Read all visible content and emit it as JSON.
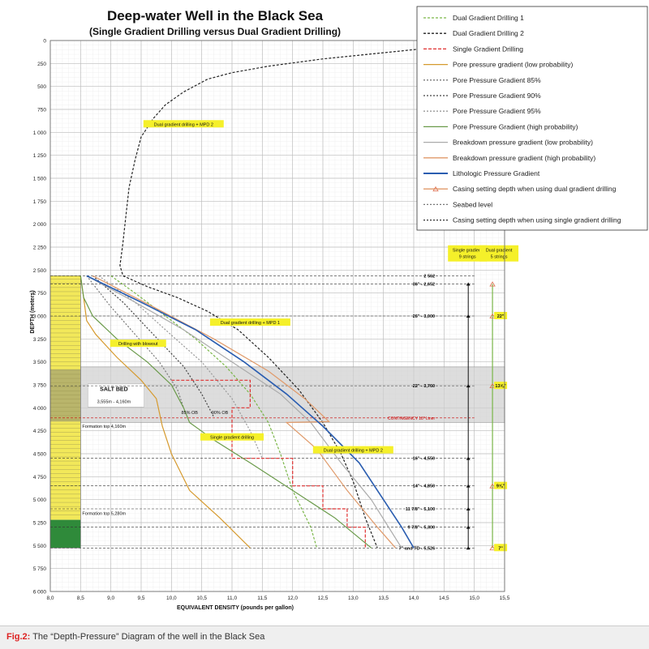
{
  "chart_data": {
    "type": "line",
    "title": "Deep-water Well in the Black Sea",
    "subtitle": "(Single Gradient Drilling versus Dual Gradient Drilling)",
    "xlabel": "EQUIVALENT DENSITY (pounds per gallon)",
    "ylabel": "DEPTH (meters)",
    "xlim": [
      8.0,
      15.5
    ],
    "ylim": [
      0,
      6000
    ],
    "y_inverted": true,
    "grid": true,
    "legend_position": "top-right",
    "x_ticks": [
      "8,0",
      "8,5",
      "9,0",
      "9,5",
      "10,0",
      "10,5",
      "11,0",
      "11,5",
      "12,0",
      "12,5",
      "13,0",
      "13,5",
      "14,0",
      "14,5",
      "15,0",
      "15,5"
    ],
    "x_tick_values": [
      8.0,
      8.5,
      9.0,
      9.5,
      10.0,
      10.5,
      11.0,
      11.5,
      12.0,
      12.5,
      13.0,
      13.5,
      14.0,
      14.5,
      15.0,
      15.5
    ],
    "y_ticks": [
      "0",
      "250",
      "500",
      "750",
      "1 000",
      "1 250",
      "1 500",
      "1 750",
      "2 000",
      "2 250",
      "2 500",
      "2 750",
      "3 000",
      "3 250",
      "3 500",
      "3 750",
      "4 000",
      "4 250",
      "4 500",
      "4 750",
      "5 000",
      "5 250",
      "5 500",
      "5 750",
      "6 000"
    ],
    "y_tick_values": [
      0,
      250,
      500,
      750,
      1000,
      1250,
      1500,
      1750,
      2000,
      2250,
      2500,
      2750,
      3000,
      3250,
      3500,
      3750,
      4000,
      4250,
      4500,
      4750,
      5000,
      5250,
      5500,
      5750,
      6000
    ],
    "series": [
      {
        "name": "Dual Gradient Drilling 1",
        "color": "#7ab648",
        "dash": "3,2",
        "points": [
          [
            9.0,
            2562
          ],
          [
            9.4,
            2750
          ],
          [
            9.9,
            3000
          ],
          [
            10.4,
            3250
          ],
          [
            10.9,
            3550
          ],
          [
            11.3,
            3850
          ],
          [
            11.6,
            4160
          ],
          [
            11.8,
            4500
          ],
          [
            12.0,
            4900
          ],
          [
            12.3,
            5300
          ],
          [
            12.4,
            5526
          ]
        ]
      },
      {
        "name": "Dual Gradient Drilling 2",
        "color": "#222222",
        "dash": "3,2",
        "points": [
          [
            15.3,
            0
          ],
          [
            14.0,
            100
          ],
          [
            12.5,
            200
          ],
          [
            11.6,
            280
          ],
          [
            11.0,
            350
          ],
          [
            10.6,
            420
          ],
          [
            10.2,
            560
          ],
          [
            9.9,
            700
          ],
          [
            9.7,
            850
          ],
          [
            9.5,
            1050
          ],
          [
            9.4,
            1300
          ],
          [
            9.3,
            1600
          ],
          [
            9.25,
            1900
          ],
          [
            9.2,
            2200
          ],
          [
            9.15,
            2450
          ],
          [
            9.2,
            2562
          ],
          [
            9.6,
            2680
          ],
          [
            10.1,
            2800
          ],
          [
            10.6,
            2950
          ],
          [
            11.1,
            3150
          ],
          [
            11.6,
            3450
          ],
          [
            12.1,
            3800
          ],
          [
            12.5,
            4160
          ],
          [
            12.8,
            4500
          ],
          [
            13.0,
            4800
          ],
          [
            13.2,
            5200
          ],
          [
            13.4,
            5526
          ]
        ]
      },
      {
        "name": "Single Gradient Drilling",
        "color": "#e03030",
        "dash": "4,2",
        "points": [
          [
            10.0,
            3700
          ],
          [
            11.3,
            3700
          ],
          [
            11.3,
            4000
          ],
          [
            11.0,
            4000
          ],
          [
            11.0,
            4550
          ],
          [
            12.0,
            4550
          ],
          [
            12.0,
            4850
          ],
          [
            12.5,
            4850
          ],
          [
            12.5,
            5100
          ],
          [
            12.9,
            5100
          ],
          [
            12.9,
            5300
          ],
          [
            13.2,
            5300
          ],
          [
            13.2,
            5526
          ]
        ]
      },
      {
        "name": "Pore pressure gradient (low probability)",
        "color": "#d69a2e",
        "dash": "",
        "points": [
          [
            8.5,
            2562
          ],
          [
            8.55,
            2800
          ],
          [
            8.6,
            3050
          ],
          [
            8.75,
            3200
          ],
          [
            9.1,
            3450
          ],
          [
            9.5,
            3700
          ],
          [
            9.75,
            3900
          ],
          [
            9.85,
            4200
          ],
          [
            10.0,
            4500
          ],
          [
            10.3,
            4900
          ],
          [
            10.8,
            5200
          ],
          [
            11.3,
            5526
          ]
        ]
      },
      {
        "name": "Pore Pressure Gradient 85%",
        "color": "#7a7a7a",
        "dash": "2,2",
        "points": [
          [
            8.6,
            2562
          ],
          [
            9.0,
            2900
          ],
          [
            9.4,
            3200
          ],
          [
            9.8,
            3500
          ],
          [
            10.1,
            3800
          ],
          [
            10.2,
            4000
          ]
        ]
      },
      {
        "name": "Pore Pressure Gradient 90%",
        "color": "#444444",
        "dash": "2,2",
        "points": [
          [
            8.7,
            2562
          ],
          [
            9.2,
            2850
          ],
          [
            9.7,
            3200
          ],
          [
            10.2,
            3550
          ],
          [
            10.5,
            3850
          ],
          [
            10.7,
            4100
          ]
        ]
      },
      {
        "name": "Pore Pressure Gradient 95%",
        "color": "#999999",
        "dash": "2,2",
        "points": [
          [
            8.8,
            2562
          ],
          [
            9.4,
            2850
          ],
          [
            9.9,
            3150
          ],
          [
            10.5,
            3500
          ],
          [
            11.0,
            3900
          ],
          [
            11.3,
            4250
          ],
          [
            11.5,
            4550
          ]
        ]
      },
      {
        "name": "Pore Pressure Gradient (high probability)",
        "color": "#6a9a4a",
        "dash": "",
        "points": [
          [
            8.5,
            2562
          ],
          [
            8.55,
            2800
          ],
          [
            8.7,
            3000
          ],
          [
            9.1,
            3250
          ],
          [
            9.6,
            3500
          ],
          [
            10.0,
            3750
          ],
          [
            10.2,
            4000
          ],
          [
            10.3,
            4160
          ],
          [
            10.7,
            4350
          ],
          [
            11.3,
            4600
          ],
          [
            12.0,
            4900
          ],
          [
            12.7,
            5200
          ],
          [
            13.3,
            5526
          ]
        ]
      },
      {
        "name": "Breakdown pressure gradient (low probability)",
        "color": "#aaaaaa",
        "dash": "",
        "points": [
          [
            8.6,
            2562
          ],
          [
            9.4,
            2850
          ],
          [
            10.2,
            3150
          ],
          [
            11.0,
            3500
          ],
          [
            11.8,
            3850
          ],
          [
            12.3,
            4160
          ],
          [
            12.8,
            4600
          ],
          [
            13.3,
            5000
          ],
          [
            13.8,
            5526
          ]
        ]
      },
      {
        "name": "Breakdown pressure gradient (high probability)",
        "color": "#e09a6a",
        "dash": "",
        "points": [
          [
            8.7,
            2562
          ],
          [
            9.7,
            2900
          ],
          [
            10.7,
            3250
          ],
          [
            11.6,
            3600
          ],
          [
            12.2,
            3900
          ],
          [
            12.6,
            4150
          ],
          [
            11.9,
            4160
          ],
          [
            12.4,
            4450
          ],
          [
            12.9,
            4900
          ],
          [
            13.4,
            5300
          ],
          [
            13.7,
            5526
          ]
        ]
      },
      {
        "name": "Lithologic Pressure Gradient",
        "color": "#2a5db0",
        "dash": "",
        "points": [
          [
            8.6,
            2562
          ],
          [
            9.5,
            2850
          ],
          [
            10.4,
            3150
          ],
          [
            11.2,
            3500
          ],
          [
            11.9,
            3850
          ],
          [
            12.5,
            4200
          ],
          [
            13.1,
            4600
          ],
          [
            13.5,
            5000
          ],
          [
            13.8,
            5300
          ],
          [
            14.0,
            5526
          ]
        ]
      },
      {
        "name": "Casing setting depth when using dual gradient drilling",
        "color": "#e09a6a",
        "dash": "",
        "marker": "triangle",
        "points": [
          [
            15.3,
            2652
          ],
          [
            15.3,
            5526
          ]
        ]
      },
      {
        "name": "Seabed level",
        "color": "#777777",
        "dash": "2,2",
        "points": [
          [
            8.0,
            2562
          ],
          [
            15.5,
            2562
          ]
        ]
      },
      {
        "name": "Casing setting depth when using single gradient drilling",
        "color": "#333333",
        "dash": "2,2",
        "points": [
          [
            8.0,
            2652
          ],
          [
            15.5,
            2652
          ]
        ]
      }
    ],
    "casing_lines": [
      {
        "label": "2 562",
        "depth": 2562
      },
      {
        "label": "36\" - 2,652",
        "depth": 2652
      },
      {
        "label": "26\" - 3,000",
        "depth": 3000
      },
      {
        "label": "22\" - 3,760",
        "depth": 3760
      },
      {
        "label": "CONTINGENCY 18\" Liner",
        "depth": 4110
      },
      {
        "label": "16\" - 4,550",
        "depth": 4550
      },
      {
        "label": "14\" - 4,850",
        "depth": 4850
      },
      {
        "label": "11 7/8\" - 5,100",
        "depth": 5100
      },
      {
        "label": "9 7/8\" - 5,300",
        "depth": 5300
      },
      {
        "label": "7\" and TD - 5,526",
        "depth": 5526
      }
    ],
    "dual_casing_labels": [
      {
        "label": "22\"",
        "depth": 3000
      },
      {
        "label": "13⅝\"",
        "depth": 3760
      },
      {
        "label": "9⅝\"",
        "depth": 4850
      },
      {
        "label": "7\"",
        "depth": 5526
      }
    ],
    "salt_bed": {
      "label": "SALT BED",
      "range_text": "3,555m - 4,160m",
      "top": 3555,
      "bottom": 4160
    },
    "annotations": [
      {
        "text": "Dual gradient drilling  + MPD 2",
        "x": 10.2,
        "y": 920
      },
      {
        "text": "Dual gradient drilling  + MPD 1",
        "x": 11.3,
        "y": 3080
      },
      {
        "text": "Drilling with blowout",
        "x": 9.45,
        "y": 3310
      },
      {
        "text": "Single gradient drilling",
        "x": 11.0,
        "y": 4330
      },
      {
        "text": "Dual gradient drilling  + MPD 2",
        "x": 13.0,
        "y": 4470
      },
      {
        "text": "85% OB",
        "x": 10.3,
        "y": 4060
      },
      {
        "text": "90% OB",
        "x": 10.8,
        "y": 4060
      }
    ],
    "formation_labels": [
      {
        "text": "Formation top 4,160m",
        "depth": 4200
      },
      {
        "text": "Formation top 5,280m",
        "depth": 5150
      }
    ],
    "column_headers": {
      "single": [
        "Single gradient",
        "9 strings"
      ],
      "dual": [
        "Dual gradient",
        "5 strings"
      ]
    }
  },
  "caption": {
    "prefix": "Fig.2:",
    "text": " The “Depth-Pressure” Diagram of the well in the Black Sea"
  }
}
